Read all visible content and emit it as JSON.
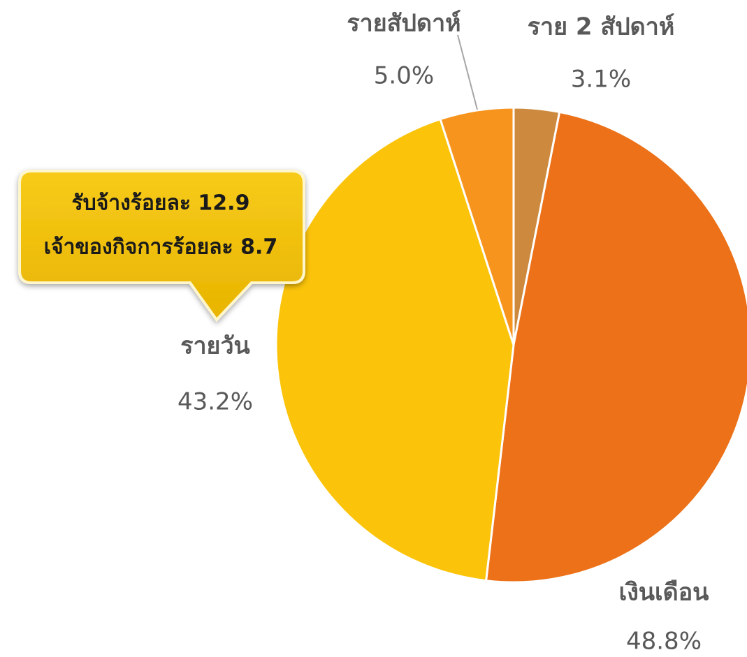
{
  "chart_data": {
    "type": "pie",
    "categories": [
      "ราย 2 สัปดาห์",
      "เงินเดือน",
      "รายวัน",
      "รายสัปดาห์"
    ],
    "values": [
      3.1,
      48.8,
      43.2,
      5.0
    ],
    "value_labels": [
      "3.1%",
      "48.8%",
      "43.2%",
      "5.0%"
    ],
    "colors": [
      "#CD8A3E",
      "#EC7118",
      "#FBC40A",
      "#F7941D"
    ],
    "annotations": [
      "รับจ้างร้อยละ 12.9",
      "เจ้าของกิจการร้อยละ 8.7"
    ]
  }
}
